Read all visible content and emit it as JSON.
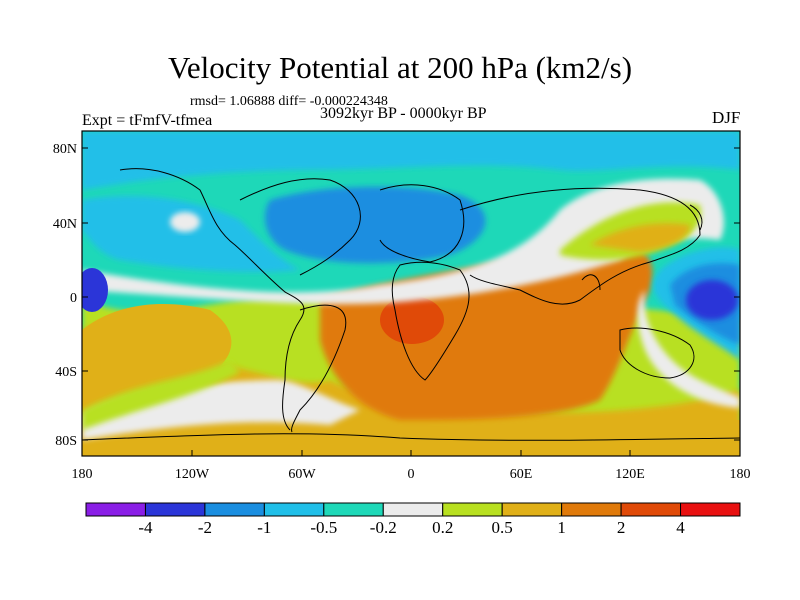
{
  "title": "Velocity Potential at 200 hPa (km2/s)",
  "stats": "rmsd= 1.06888 diff= -0.000224348",
  "experiment": "Expt = tFmfV-tfmea",
  "period": "3092kyr BP - 0000kyr BP",
  "season": "DJF",
  "map": {
    "lat_labels": [
      "80N",
      "40N",
      "0",
      "40S",
      "80S"
    ],
    "lon_labels": [
      "180",
      "120W",
      "60W",
      "0",
      "60E",
      "120E",
      "180"
    ]
  },
  "colorbar": {
    "labels": [
      "-4",
      "-2",
      "-1",
      "-0.5",
      "-0.2",
      "0.2",
      "0.5",
      "1",
      "2",
      "4"
    ],
    "colors": [
      "#8a1ee6",
      "#2b35d8",
      "#1a8ee0",
      "#20bfe8",
      "#1ed8b8",
      "#ececec",
      "#b8e020",
      "#e0b018",
      "#e07a0a",
      "#e04a08",
      "#e81010"
    ]
  },
  "colors": {
    "ocean_light": "#1ed8b8",
    "background": "#ffffff"
  }
}
